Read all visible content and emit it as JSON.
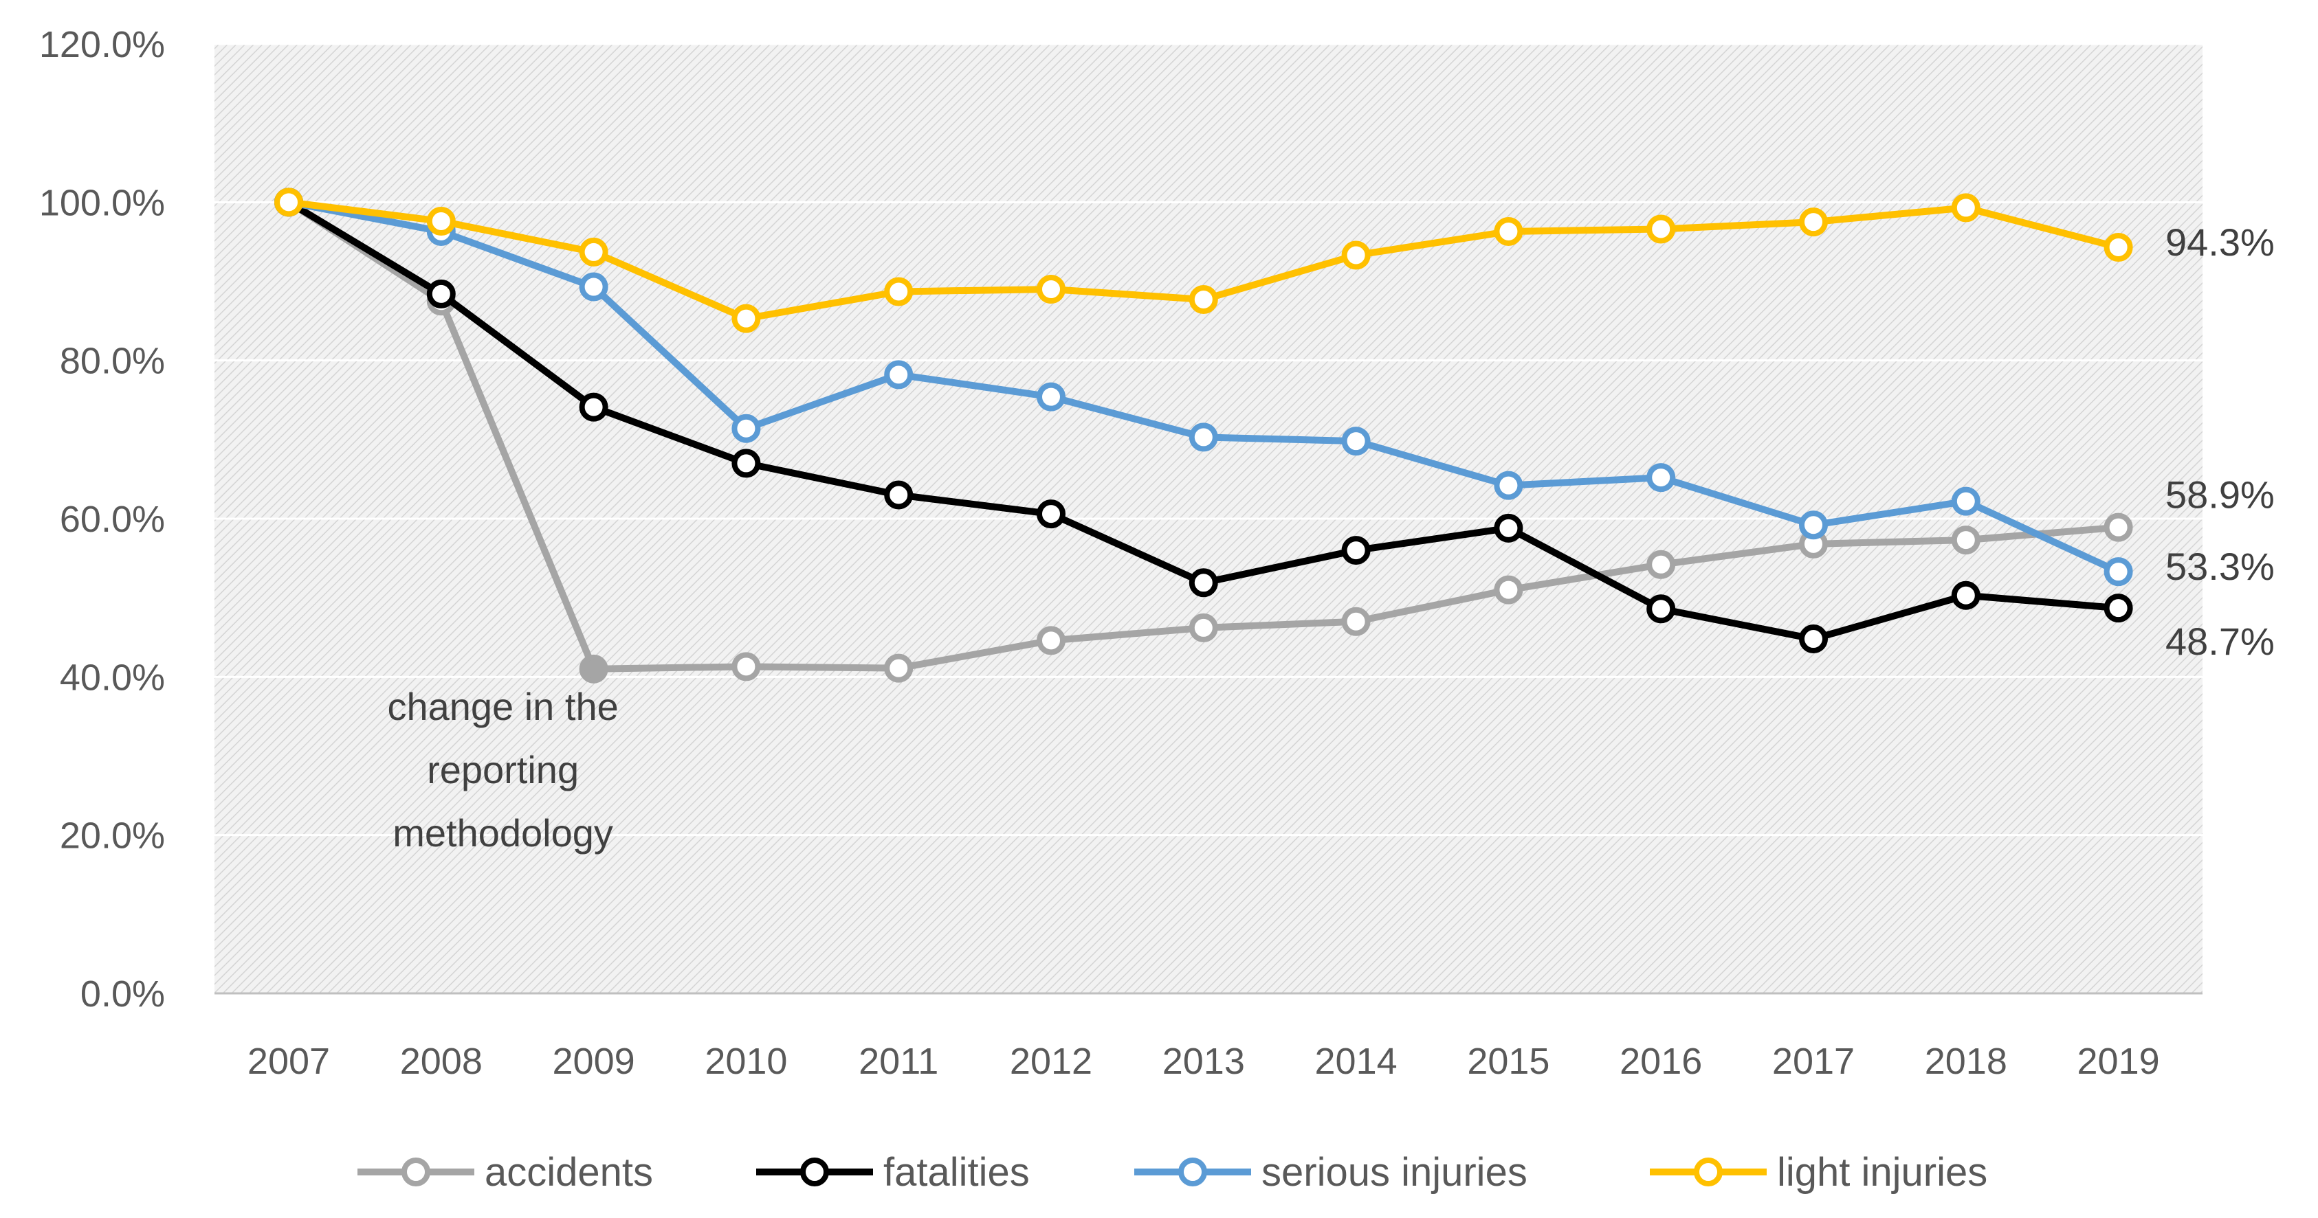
{
  "chart_data": {
    "type": "line",
    "title": "",
    "xlabel": "",
    "ylabel": "",
    "ylim": [
      0,
      120
    ],
    "y_tick_step": 20,
    "y_tick_format": "percent_1dp",
    "grid": true,
    "plot_background": "hatched light gray",
    "legend_position": "bottom",
    "categories": [
      "2007",
      "2008",
      "2009",
      "2010",
      "2011",
      "2012",
      "2013",
      "2014",
      "2015",
      "2016",
      "2017",
      "2018",
      "2019"
    ],
    "series": [
      {
        "name": "accidents",
        "color": "#a5a5a5",
        "values": [
          100.0,
          87.5,
          41.0,
          41.3,
          41.1,
          44.6,
          46.2,
          47.0,
          51.0,
          54.2,
          56.8,
          57.3,
          58.9
        ],
        "end_label": "58.9%"
      },
      {
        "name": "fatalities",
        "color": "#000000",
        "values": [
          100.0,
          88.4,
          74.1,
          67.0,
          63.0,
          60.6,
          51.9,
          56.0,
          58.8,
          48.6,
          44.8,
          50.3,
          48.7
        ],
        "end_label": "48.7%"
      },
      {
        "name": "serious injuries",
        "color": "#5b9bd5",
        "values": [
          100.0,
          96.3,
          89.3,
          71.4,
          78.2,
          75.4,
          70.3,
          69.8,
          64.2,
          65.2,
          59.2,
          62.2,
          53.3
        ],
        "end_label": "53.3%"
      },
      {
        "name": "light injuries",
        "color": "#ffc000",
        "values": [
          100.0,
          97.6,
          93.7,
          85.3,
          88.7,
          89.0,
          87.7,
          93.3,
          96.3,
          96.6,
          97.5,
          99.3,
          94.3
        ],
        "end_label": "94.3%"
      }
    ],
    "annotations": [
      {
        "lines": [
          "change in the",
          "reporting",
          "methodology"
        ],
        "anchor_category": "2009",
        "anchor_series": "accidents"
      }
    ]
  }
}
